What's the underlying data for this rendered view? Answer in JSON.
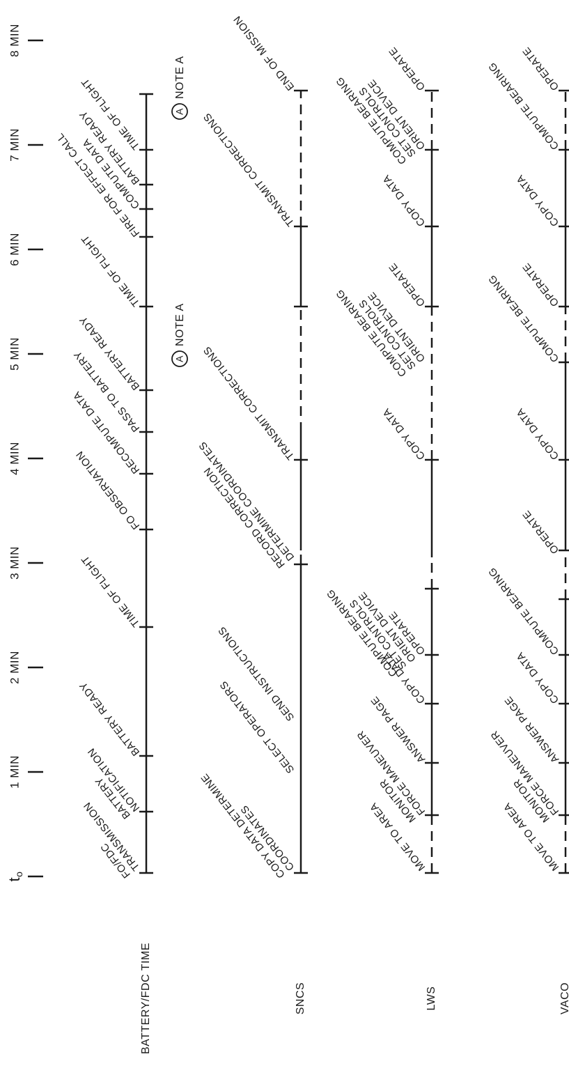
{
  "time_axis": {
    "start_label": "t",
    "start_subscript": "o",
    "labels": [
      "1 MIN",
      "2 MIN",
      "3 MIN",
      "4 MIN",
      "5 MIN",
      "6 MIN",
      "7 MIN",
      "8 MIN"
    ]
  },
  "rows": [
    {
      "name": "BATTERY/FDC TIME",
      "tasks": [
        [
          "FO/FDC",
          "TRANSMISSION"
        ],
        [
          "BATTERY",
          "NOTIFICATION"
        ],
        [
          "BATTERY READY"
        ],
        [
          "TIME OF FLIGHT"
        ],
        [
          "FO OBSERVATION"
        ],
        [
          "RECOMPUTE DATA"
        ],
        [
          "PASS TO BATTERY"
        ],
        [
          "BATTERY READY"
        ],
        [
          "TIME OF FLIGHT"
        ],
        [
          "FIRE FOR EFFECT CALL"
        ],
        [
          "COMPUTE DATA"
        ],
        [
          "BATTERY READY"
        ],
        [
          "TIME OF FLIGHT"
        ]
      ]
    },
    {
      "name": "SNCS",
      "tasks": [
        [
          "COPY DATA DETERMINE",
          "COORDINATES"
        ],
        [
          "SELECT OPERATORS"
        ],
        [
          "SEND INSTRUCTIONS"
        ],
        [
          "RECORD CORRECTION",
          "DETERMINE COORDINATES"
        ],
        [
          "TRANSMIT CORRECTIONS"
        ],
        [
          "TRANSMIT CORRECTIONS"
        ],
        [
          "END OF MISSION"
        ]
      ]
    },
    {
      "name": "LWS",
      "tasks": [
        [
          "MOVE TO AREA"
        ],
        [
          "MONITOR",
          "FORCE MANEUVER"
        ],
        [
          "ANSWER PAGE"
        ],
        [
          "COPY DATA"
        ],
        [
          "COMPUTE BEARING",
          "SET CONTROLS",
          "ORIENT DEVICE",
          "OPERATE"
        ],
        [
          "COPY DATA"
        ],
        [
          "COMPUTE BEARING",
          "SET CONTROLS",
          "ORIENT DEVICE"
        ],
        [
          "OPERATE"
        ],
        [
          "COPY DATA"
        ],
        [
          "COMPUTE BEARING",
          "SET CONTROLS",
          "ORIENT DEVICE"
        ],
        [
          "OPERATE"
        ]
      ]
    },
    {
      "name": "VACO",
      "tasks": [
        [
          "MOVE TO AREA"
        ],
        [
          "MONITOR",
          "FORCE MANEUVER"
        ],
        [
          "ANSWER PAGE"
        ],
        [
          "COPY DATA"
        ],
        [
          "COMPUTE BEARING"
        ],
        [
          "OPERATE"
        ],
        [
          "COPY DATA"
        ],
        [
          "COMPUTE BEARING"
        ],
        [
          "OPERATE"
        ],
        [
          "COPY DATA"
        ],
        [
          "COMPUTE BEARING"
        ],
        [
          "OPERATE"
        ]
      ]
    }
  ],
  "notes": [
    {
      "marker": "A",
      "text": "NOTE A"
    },
    {
      "marker": "A",
      "text": "NOTE A"
    }
  ]
}
